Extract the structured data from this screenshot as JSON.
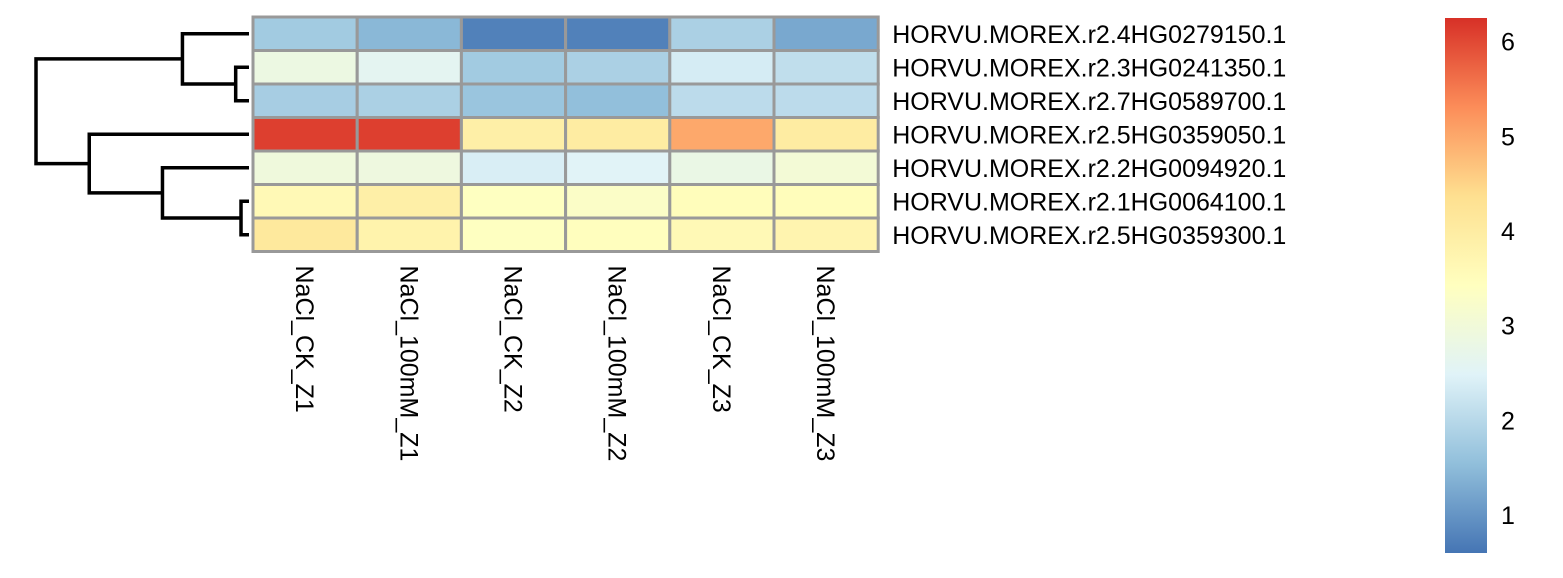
{
  "chart_data": {
    "type": "heatmap",
    "rows": [
      "HORVU.MOREX.r2.4HG0279150.1",
      "HORVU.MOREX.r2.3HG0241350.1",
      "HORVU.MOREX.r2.7HG0589700.1",
      "HORVU.MOREX.r2.5HG0359050.1",
      "HORVU.MOREX.r2.2HG0094920.1",
      "HORVU.MOREX.r2.1HG0064100.1",
      "HORVU.MOREX.r2.5HG0359300.1"
    ],
    "columns": [
      "NaCl_CK_Z1",
      "NaCl_100mM_Z1",
      "NaCl_CK_Z2",
      "NaCl_100mM_Z2",
      "NaCl_CK_Z3",
      "NaCl_100mM_Z3"
    ],
    "values": [
      [
        1.75,
        1.45,
        0.75,
        0.75,
        1.85,
        1.25
      ],
      [
        2.85,
        2.6,
        1.75,
        1.85,
        2.35,
        2.1
      ],
      [
        1.8,
        1.85,
        1.65,
        1.55,
        2.05,
        2.05
      ],
      [
        6.1,
        6.1,
        3.9,
        4.0,
        5.0,
        4.0
      ],
      [
        2.95,
        2.9,
        2.4,
        2.5,
        2.8,
        3.05
      ],
      [
        3.6,
        3.9,
        3.4,
        3.3,
        3.5,
        3.5
      ],
      [
        4.1,
        3.8,
        3.4,
        3.45,
        3.6,
        3.75
      ]
    ],
    "color_scale": {
      "min": 0.6,
      "max": 6.25,
      "colors": [
        "#4575b4",
        "#91bfdb",
        "#e0f3f8",
        "#ffffbf",
        "#fee090",
        "#fc8d59",
        "#d73027"
      ],
      "ticks": [
        1,
        2,
        3,
        4,
        5,
        6
      ]
    },
    "row_dendrogram": {
      "merges": [
        [
          2,
          3
        ],
        [
          6,
          7
        ],
        [
          1,
          -1
        ],
        [
          5,
          -2
        ],
        [
          4,
          -4
        ],
        [
          -3,
          -5
        ]
      ],
      "heights": [
        0.1,
        0.06,
        0.5,
        0.65,
        1.2,
        1.6
      ]
    },
    "legend": "right"
  }
}
